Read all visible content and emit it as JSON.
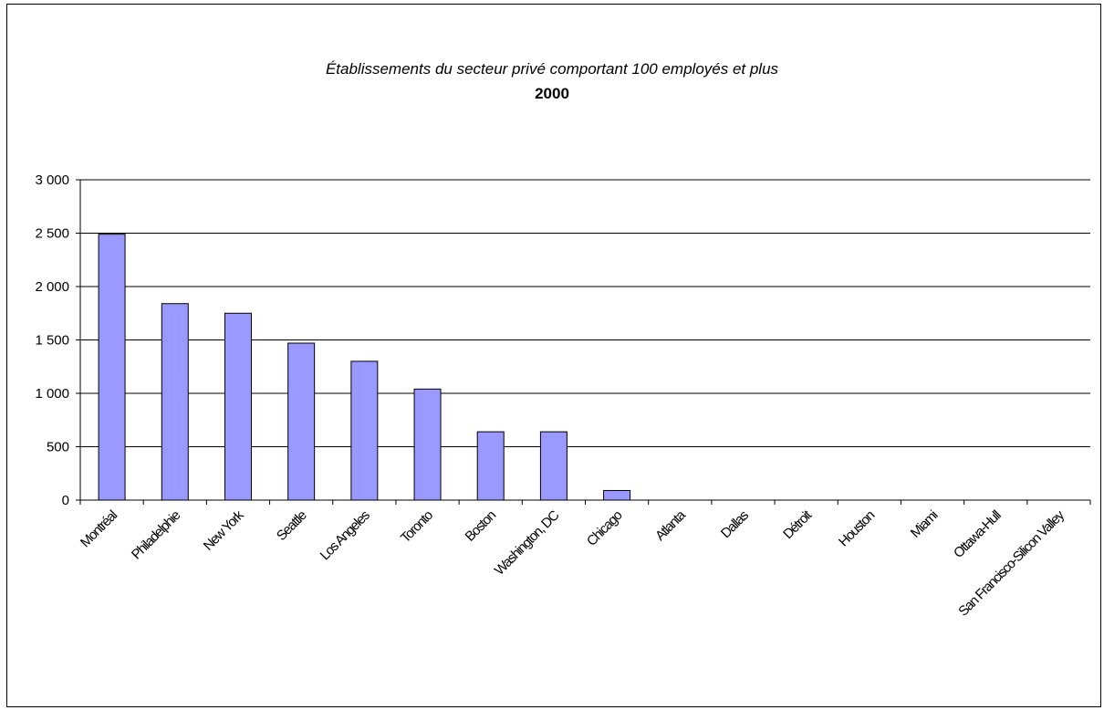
{
  "chart_data": {
    "type": "bar",
    "title": "Établissements du secteur privé comportant 100 employés et plus",
    "subtitle": "2000",
    "xlabel": "",
    "ylabel": "",
    "ylim": [
      0,
      3000
    ],
    "yticks": [
      0,
      500,
      1000,
      1500,
      2000,
      2500,
      3000
    ],
    "ytick_labels": [
      "0",
      "500",
      "1 000",
      "1 500",
      "2 000",
      "2 500",
      "3 000"
    ],
    "grid": true,
    "legend": "none",
    "categories": [
      "Montréal",
      "Philadelphie",
      "New York",
      "Seattle",
      "Los Angeles",
      "Toronto",
      "Boston",
      "Washington, DC",
      "Chicago",
      "Atlanta",
      "Dallas",
      "Détroit",
      "Houston",
      "Miami",
      "Ottawa-Hull",
      "San Francisco-Silicon Valley"
    ],
    "values": [
      2490,
      1840,
      1750,
      1470,
      1300,
      1040,
      640,
      640,
      90,
      0,
      0,
      0,
      0,
      0,
      0,
      0
    ],
    "bar_color": "#9999ff",
    "bar_edge_color": "#000000"
  }
}
